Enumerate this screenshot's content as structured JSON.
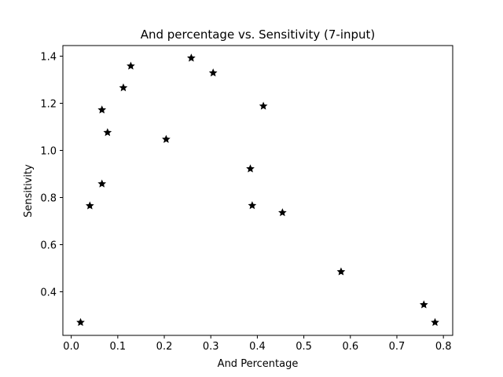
{
  "chart_data": {
    "type": "scatter",
    "title": "And percentage vs. Sensitivity (7-input)",
    "xlabel": "And Percentage",
    "ylabel": "Sensitivity",
    "xlim": [
      -0.018,
      0.82
    ],
    "ylim": [
      0.215,
      1.445
    ],
    "xticks": [
      0.0,
      0.1,
      0.2,
      0.3,
      0.4,
      0.5,
      0.6,
      0.7,
      0.8
    ],
    "xtick_labels": [
      "0.0",
      "0.1",
      "0.2",
      "0.3",
      "0.4",
      "0.5",
      "0.6",
      "0.7",
      "0.8"
    ],
    "yticks": [
      0.4,
      0.6,
      0.8,
      1.0,
      1.2,
      1.4
    ],
    "ytick_labels": [
      "0.4",
      "0.6",
      "0.8",
      "1.0",
      "1.2",
      "1.4"
    ],
    "marker": "star",
    "marker_color": "#000000",
    "grid": false,
    "points": [
      {
        "x": 0.02,
        "y": 0.27
      },
      {
        "x": 0.04,
        "y": 0.765
      },
      {
        "x": 0.066,
        "y": 0.858
      },
      {
        "x": 0.066,
        "y": 1.172
      },
      {
        "x": 0.078,
        "y": 1.076
      },
      {
        "x": 0.112,
        "y": 1.266
      },
      {
        "x": 0.128,
        "y": 1.358
      },
      {
        "x": 0.204,
        "y": 1.047
      },
      {
        "x": 0.258,
        "y": 1.392
      },
      {
        "x": 0.305,
        "y": 1.329
      },
      {
        "x": 0.385,
        "y": 0.922
      },
      {
        "x": 0.389,
        "y": 0.766
      },
      {
        "x": 0.413,
        "y": 1.188
      },
      {
        "x": 0.454,
        "y": 0.736
      },
      {
        "x": 0.58,
        "y": 0.485
      },
      {
        "x": 0.758,
        "y": 0.345
      },
      {
        "x": 0.782,
        "y": 0.27
      }
    ]
  }
}
